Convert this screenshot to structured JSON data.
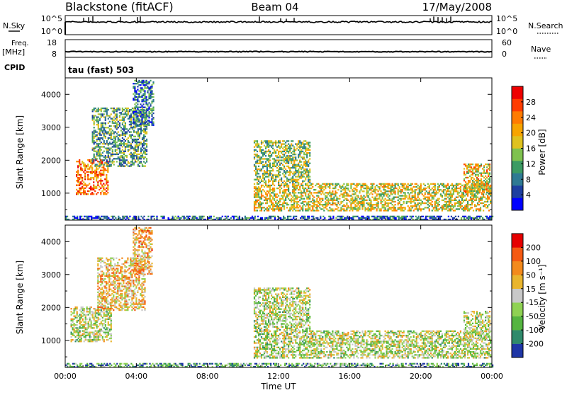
{
  "header": {
    "station": "Blackstone (fitACF)",
    "beam": "Beam 04",
    "date": "17/May/2008"
  },
  "top_panels": {
    "nsky_label": "N.Sky",
    "nsky_ticks": [
      "10^5",
      "10^0"
    ],
    "nsearch_label": "N.Search",
    "nsearch_ticks": [
      "10^5",
      "10^0"
    ],
    "freq_label": "Freq.",
    "freq_unit": "[MHz]",
    "freq_ticks": [
      "18",
      "8"
    ],
    "nave_label": "Nave",
    "nave_ticks": [
      "60",
      "0"
    ],
    "cpid_label": "CPID",
    "cpid_value": "tau (fast) 503"
  },
  "chart_data": [
    {
      "type": "heatmap",
      "name": "power",
      "ylabel": "Slant Range [km]",
      "yticks": [
        "4000",
        "3000",
        "2000",
        "1000"
      ],
      "ylim": [
        180,
        4500
      ],
      "xlim": [
        0,
        24
      ],
      "colorbar_label": "Power [dB]",
      "colorbar_ticks": [
        "28",
        "24",
        "20",
        "16",
        "12",
        "8",
        "4"
      ],
      "colorbar_colors": [
        "#0000ff",
        "#1e3fa0",
        "#2f7a93",
        "#3c9b63",
        "#7fc24f",
        "#dfc21f",
        "#f7a400",
        "#ff7b00",
        "#ff3c00",
        "#ee0000"
      ],
      "regions": [
        {
          "t0": 0.6,
          "t1": 2.4,
          "r0": 950,
          "r1": 2000,
          "level": 0.75
        },
        {
          "t0": 1.5,
          "t1": 4.6,
          "r0": 1800,
          "r1": 3600,
          "level": 0.35
        },
        {
          "t0": 3.8,
          "t1": 5.0,
          "r0": 3000,
          "r1": 4400,
          "level": 0.25
        },
        {
          "t0": 10.6,
          "t1": 23.9,
          "r0": 450,
          "r1": 1300,
          "level": 0.55
        },
        {
          "t0": 10.6,
          "t1": 13.8,
          "r0": 1300,
          "r1": 2600,
          "level": 0.45
        },
        {
          "t0": 22.4,
          "t1": 23.9,
          "r0": 1000,
          "r1": 1900,
          "level": 0.6
        },
        {
          "t0": 0.0,
          "t1": 24.0,
          "r0": 180,
          "r1": 300,
          "level": 0.2
        }
      ]
    },
    {
      "type": "heatmap",
      "name": "velocity",
      "ylabel": "Slant Range [km]",
      "yticks": [
        "4000",
        "3000",
        "2000",
        "1000"
      ],
      "ylim": [
        180,
        4500
      ],
      "xlim": [
        0,
        24
      ],
      "xticks": [
        "00:00",
        "04:00",
        "08:00",
        "12:00",
        "16:00",
        "20:00",
        "00:00"
      ],
      "xlabel": "Time UT",
      "colorbar_label": "Velocity [m s⁻¹]",
      "colorbar_ticks": [
        "200",
        "100",
        "50",
        "15",
        "-15",
        "-50",
        "-100",
        "-200"
      ],
      "colorbar_colors": [
        "#1f36a6",
        "#2f8a6b",
        "#55b540",
        "#8fd253",
        "#c8c8c8",
        "#e9b52e",
        "#f38a1c",
        "#f55a12",
        "#e60000"
      ],
      "regions": [
        {
          "t0": 0.3,
          "t1": 2.6,
          "r0": 950,
          "r1": 2000,
          "level": 0.45
        },
        {
          "t0": 1.8,
          "t1": 4.5,
          "r0": 1900,
          "r1": 3500,
          "level": 0.6
        },
        {
          "t0": 3.8,
          "t1": 4.9,
          "r0": 3000,
          "r1": 4400,
          "level": 0.65
        },
        {
          "t0": 10.6,
          "t1": 23.9,
          "r0": 450,
          "r1": 1300,
          "level": 0.45
        },
        {
          "t0": 10.6,
          "t1": 13.8,
          "r0": 1300,
          "r1": 2600,
          "level": 0.45
        },
        {
          "t0": 22.4,
          "t1": 23.9,
          "r0": 1000,
          "r1": 1900,
          "level": 0.45
        },
        {
          "t0": 0.0,
          "t1": 24.0,
          "r0": 180,
          "r1": 300,
          "level": 0.25
        }
      ]
    }
  ]
}
